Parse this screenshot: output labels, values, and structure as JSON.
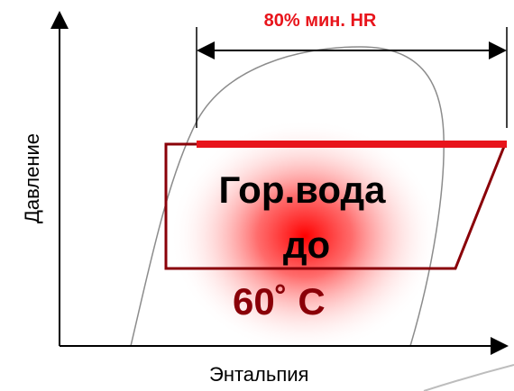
{
  "labels": {
    "heat_recovery": "80% мин. HR",
    "y_axis": "Давление",
    "x_axis": "Энтальпия",
    "hot_water_line1": "Гор.вода",
    "hot_water_line2": "до",
    "hot_water_line3": "60˚  C"
  },
  "colors": {
    "accent_red": "#e8141b",
    "cycle_outline": "#8a0008",
    "dome_curve": "#8c8c8c",
    "axis": "#000000"
  }
}
